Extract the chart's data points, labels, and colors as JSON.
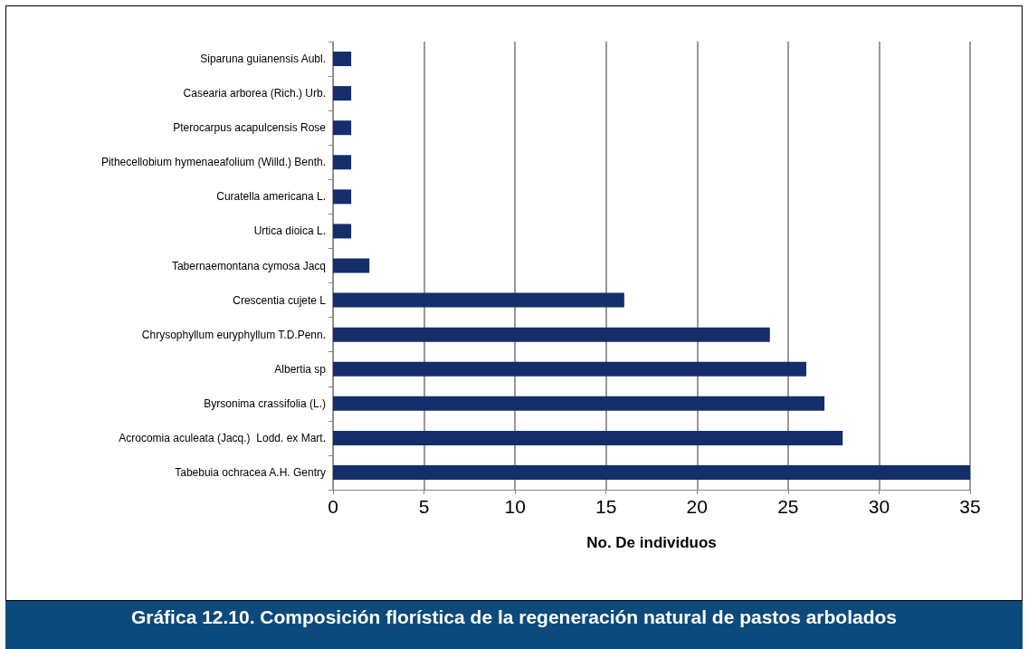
{
  "chart_data": {
    "type": "bar",
    "orientation": "horizontal",
    "title": "Gráfica 12.10. Composición florística de la regeneración natural de pastos arbolados",
    "xlabel": "No. De individuos",
    "categories": [
      "Siparuna guianensis Aubl.",
      "Casearia arborea (Rich.) Urb.",
      "Pterocarpus acapulcensis Rose",
      "Pithecellobium hymenaeafolium (Willd.) Benth.",
      "Curatella americana L.",
      "Urtica dioica L.",
      "Tabernaemontana cymosa Jacq",
      "Crescentia cujete L",
      "Chrysophyllum euryphyllum T.D.Penn.",
      "Albertia sp",
      "Byrsonima crassifolia (L.)",
      "Acrocomia aculeata (Jacq.)  Lodd. ex Mart.",
      "Tabebuia ochracea A.H. Gentry"
    ],
    "values": [
      1,
      1,
      1,
      1,
      1,
      1,
      2,
      16,
      24,
      26,
      27,
      28,
      35
    ],
    "color": "#132e6b",
    "xlim": [
      0,
      35
    ],
    "xticks": [
      0,
      5,
      10,
      15,
      20,
      25,
      30,
      35
    ],
    "grid": "x"
  }
}
